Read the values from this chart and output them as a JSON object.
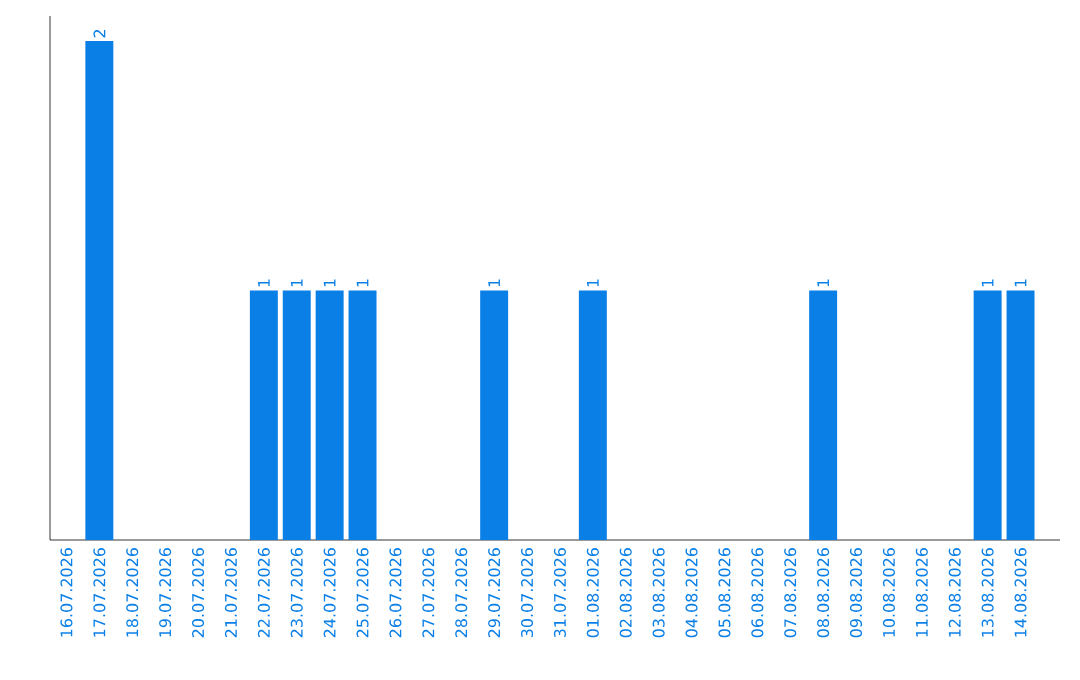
{
  "chart_data": {
    "type": "bar",
    "categories": [
      "16.07.2026",
      "17.07.2026",
      "18.07.2026",
      "19.07.2026",
      "20.07.2026",
      "21.07.2026",
      "22.07.2026",
      "23.07.2026",
      "24.07.2026",
      "25.07.2026",
      "26.07.2026",
      "27.07.2026",
      "28.07.2026",
      "29.07.2026",
      "30.07.2026",
      "31.07.2026",
      "01.08.2026",
      "02.08.2026",
      "03.08.2026",
      "04.08.2026",
      "05.08.2026",
      "06.08.2026",
      "07.08.2026",
      "08.08.2026",
      "09.08.2026",
      "10.08.2026",
      "11.08.2026",
      "12.08.2026",
      "13.08.2026",
      "14.08.2026"
    ],
    "values": [
      0,
      2,
      0,
      0,
      0,
      0,
      1,
      1,
      1,
      1,
      0,
      0,
      0,
      1,
      0,
      0,
      1,
      0,
      0,
      0,
      0,
      0,
      0,
      1,
      0,
      0,
      0,
      0,
      1,
      1
    ],
    "value_labels": [
      null,
      "2",
      null,
      null,
      null,
      null,
      "1",
      "1",
      "1",
      "1",
      null,
      null,
      null,
      "1",
      null,
      null,
      "1",
      null,
      null,
      null,
      null,
      null,
      null,
      "1",
      null,
      null,
      null,
      null,
      "1",
      "1"
    ],
    "color": "#0a7fe6",
    "tick_labels": "x"
  }
}
